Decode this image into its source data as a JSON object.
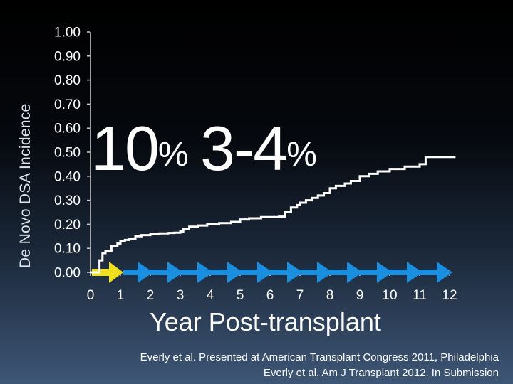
{
  "chart_data": {
    "type": "line",
    "title": "",
    "xlabel": "Year Post-transplant",
    "ylabel": "De Novo DSA Incidence",
    "xlim": [
      0,
      12
    ],
    "ylim": [
      0,
      1
    ],
    "x_ticks": [
      "0",
      "1",
      "2",
      "3",
      "4",
      "5",
      "6",
      "7",
      "8",
      "9",
      "10",
      "11",
      "12"
    ],
    "y_ticks": [
      "1.00",
      "0.90",
      "0.80",
      "0.70",
      "0.60",
      "0.50",
      "0.40",
      "0.30",
      "0.20",
      "0.10",
      "0.00"
    ],
    "series": [
      {
        "color": "#ffffff",
        "x": [
          0,
          0.3,
          0.4,
          0.5,
          0.7,
          0.9,
          1.0,
          1.15,
          1.3,
          1.5,
          1.7,
          2.0,
          2.3,
          2.6,
          2.8,
          3.0,
          3.1,
          3.3,
          3.6,
          3.9,
          4.3,
          4.7,
          5.0,
          5.3,
          5.7,
          6.0,
          6.3,
          6.5,
          6.7,
          6.9,
          7.0,
          7.2,
          7.4,
          7.6,
          7.8,
          8.0,
          8.2,
          8.5,
          8.7,
          9.0,
          9.3,
          9.6,
          10.0,
          10.5,
          11.0,
          11.2,
          12.2
        ],
        "y": [
          0,
          0.05,
          0.08,
          0.09,
          0.11,
          0.12,
          0.13,
          0.135,
          0.14,
          0.15,
          0.155,
          0.16,
          0.162,
          0.164,
          0.165,
          0.17,
          0.18,
          0.19,
          0.195,
          0.2,
          0.205,
          0.21,
          0.22,
          0.225,
          0.23,
          0.23,
          0.232,
          0.25,
          0.27,
          0.28,
          0.29,
          0.3,
          0.31,
          0.32,
          0.33,
          0.35,
          0.36,
          0.37,
          0.38,
          0.4,
          0.41,
          0.42,
          0.43,
          0.44,
          0.45,
          0.48,
          0.48
        ]
      }
    ],
    "annotations": {
      "year1_number": "10",
      "year1_unit": "%",
      "later_number": "3-4",
      "later_unit": "%"
    },
    "timeline_arrows": {
      "first_color": "#f0e020",
      "rest_color": "#1a8fe0",
      "count": 12
    },
    "axis_color": "#d0d0d0",
    "grid": false
  },
  "citation": {
    "line1": "Everly et al. Presented at American Transplant Congress 2011, Philadelphia",
    "line2": "Everly et al. Am J Transplant 2012. In Submission"
  }
}
